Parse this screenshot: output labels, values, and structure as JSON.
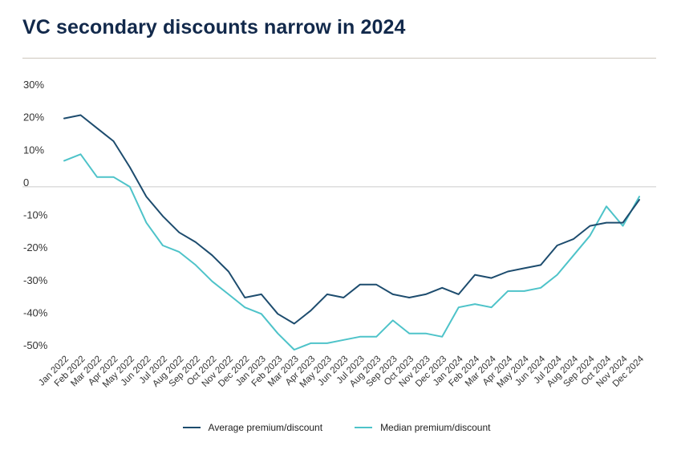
{
  "header": {
    "title": "VC secondary discounts narrow in 2024"
  },
  "colors": {
    "average": "#1d4c6e",
    "median": "#4ec3c9",
    "zero_line": "#cccccc",
    "title": "#12294b"
  },
  "chart_data": {
    "type": "line",
    "title": "VC secondary discounts narrow in 2024",
    "xlabel": "",
    "ylabel": "",
    "ylim": [
      -50,
      30
    ],
    "y_ticks": [
      30,
      20,
      10,
      0,
      -10,
      -20,
      -30,
      -40,
      -50
    ],
    "y_tick_labels": [
      "30%",
      "20%",
      "10%",
      "0",
      "-10%",
      "-20%",
      "-30%",
      "-40%",
      "-50%"
    ],
    "categories": [
      "Jan 2022",
      "Feb 2022",
      "Mar 2022",
      "Apr 2022",
      "May 2022",
      "Jun 2022",
      "Jul 2022",
      "Aug 2022",
      "Sep 2022",
      "Oct 2022",
      "Nov 2022",
      "Dec 2022",
      "Jan 2023",
      "Feb 2023",
      "Mar 2023",
      "Apr 2023",
      "May 2023",
      "Jun 2023",
      "Jul 2023",
      "Aug 2023",
      "Sep 2023",
      "Oct 2023",
      "Nov 2023",
      "Dec 2023",
      "Jan 2024",
      "Feb 2024",
      "Mar 2024",
      "Apr 2024",
      "May 2024",
      "Jun 2024",
      "Jul 2024",
      "Aug 2024",
      "Sep 2024",
      "Oct 2024",
      "Nov 2024",
      "Dec 2024"
    ],
    "series": [
      {
        "name": "Average premium/discount",
        "color_key": "average",
        "values": [
          21,
          22,
          18,
          14,
          6,
          -3,
          -9,
          -14,
          -17,
          -21,
          -26,
          -34,
          -33,
          -39,
          -42,
          -38,
          -33,
          -34,
          -30,
          -30,
          -33,
          -34,
          -33,
          -31,
          -33,
          -27,
          -28,
          -26,
          -25,
          -24,
          -18,
          -16,
          -12,
          -11,
          -11,
          -4
        ]
      },
      {
        "name": "Median premium/discount",
        "color_key": "median",
        "values": [
          8,
          10,
          3,
          3,
          0,
          -11,
          -18,
          -20,
          -24,
          -29,
          -33,
          -37,
          -39,
          -45,
          -50,
          -48,
          -48,
          -47,
          -46,
          -46,
          -41,
          -45,
          -45,
          -46,
          -37,
          -36,
          -37,
          -32,
          -32,
          -31,
          -27,
          -21,
          -15,
          -6,
          -12,
          -3
        ]
      }
    ],
    "legend_position": "bottom-center",
    "grid": false
  }
}
